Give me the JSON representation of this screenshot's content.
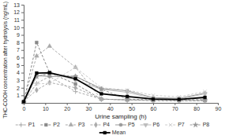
{
  "chart_data": {
    "type": "line",
    "x": [
      0,
      6,
      12,
      24,
      36,
      48,
      60,
      72,
      84
    ],
    "series": [
      {
        "name": "P1",
        "color": "#aaaaaa",
        "marker": "plus",
        "line_style": "dashed",
        "values": [
          0.1,
          2.6,
          3.5,
          1.5,
          0.5,
          0.4,
          0.4,
          0.3,
          0.3
        ]
      },
      {
        "name": "P2",
        "color": "#888888",
        "marker": "square",
        "line_style": "dashed",
        "values": [
          0.1,
          8.0,
          4.0,
          2.5,
          0.5,
          0.4,
          0.3,
          0.3,
          0.3
        ]
      },
      {
        "name": "P3",
        "color": "#aaaaaa",
        "marker": "triangle-up",
        "line_style": "dashed",
        "values": [
          0.2,
          6.2,
          7.5,
          4.7,
          0.5,
          0.4,
          0.4,
          0.4,
          0.4
        ]
      },
      {
        "name": "P4",
        "color": "#aaaaaa",
        "marker": "diamond",
        "line_style": "dashed",
        "values": [
          0.2,
          1.7,
          2.7,
          2.0,
          0.5,
          0.4,
          0.4,
          0.4,
          0.4
        ]
      },
      {
        "name": "P5",
        "color": "#999999",
        "marker": "circle",
        "line_style": "solid",
        "values": [
          0.1,
          3.6,
          3.5,
          3.5,
          1.9,
          1.6,
          0.7,
          0.6,
          1.3
        ]
      },
      {
        "name": "P6",
        "color": "#bbbbbb",
        "marker": "triangle-down",
        "line_style": "solid",
        "values": [
          0.2,
          3.5,
          4.0,
          3.0,
          1.8,
          1.4,
          0.6,
          0.5,
          1.2
        ]
      },
      {
        "name": "P7",
        "color": "#cccccc",
        "marker": "cross",
        "line_style": "dashed",
        "values": [
          0.1,
          2.5,
          2.6,
          4.7,
          2.0,
          1.7,
          1.0,
          0.8,
          1.5
        ]
      },
      {
        "name": "P8",
        "color": "#999999",
        "marker": "star",
        "line_style": "dashed",
        "values": [
          0.1,
          3.5,
          3.8,
          3.5,
          1.8,
          0.5,
          0.4,
          0.4,
          0.4
        ]
      },
      {
        "name": "Mean",
        "color": "#000000",
        "marker": "square",
        "line_style": "solid",
        "values": [
          0.15,
          3.95,
          4.0,
          3.2,
          1.2,
          0.85,
          0.5,
          0.46,
          0.73
        ]
      }
    ],
    "xlabel": "Urine sampling (h)",
    "ylabel": "THC-COOH concentration after hydrolysis (ng/mL)",
    "xlim": [
      0,
      90
    ],
    "ylim": [
      0,
      13
    ],
    "xticks": [
      0,
      10,
      20,
      30,
      40,
      50,
      60,
      70,
      80,
      90
    ],
    "yticks": [
      1,
      2,
      3,
      4,
      5,
      6,
      7,
      8,
      9,
      10,
      11,
      12,
      13
    ]
  }
}
